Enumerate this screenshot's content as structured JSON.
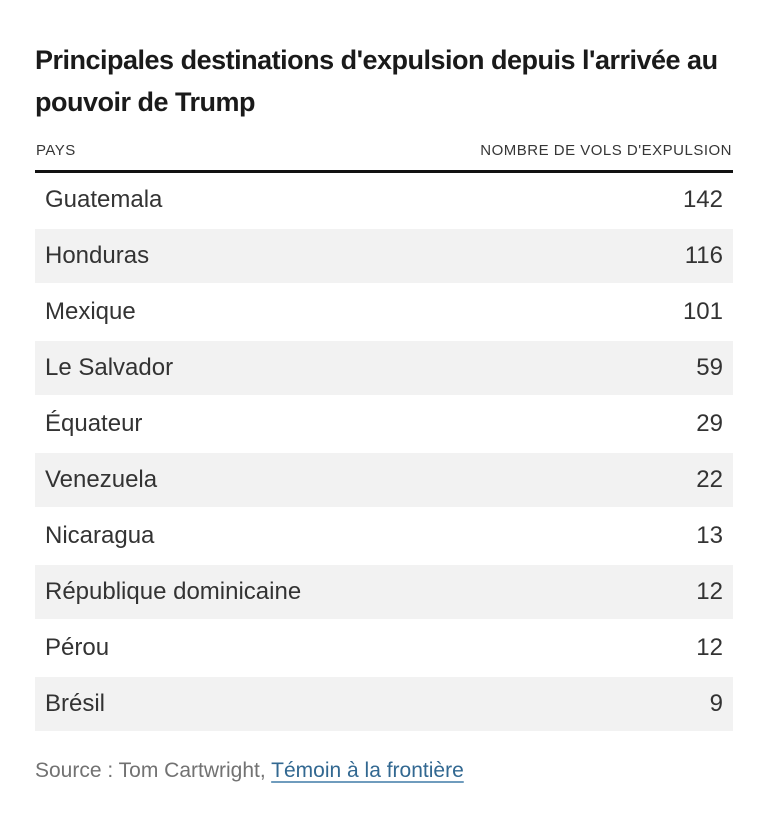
{
  "title": "Principales destinations d'expulsion depuis l'arrivée au pouvoir de Trump",
  "table": {
    "columns": {
      "country": "PAYS",
      "value": "NOMBRE DE VOLS D'EXPULSION"
    },
    "rows": [
      {
        "pays": "Guatemala",
        "vols": "142"
      },
      {
        "pays": "Honduras",
        "vols": "116"
      },
      {
        "pays": "Mexique",
        "vols": "101"
      },
      {
        "pays": "Le Salvador",
        "vols": "59"
      },
      {
        "pays": "Équateur",
        "vols": "29"
      },
      {
        "pays": "Venezuela",
        "vols": "22"
      },
      {
        "pays": "Nicaragua",
        "vols": "13"
      },
      {
        "pays": "République dominicaine",
        "vols": "12"
      },
      {
        "pays": "Pérou",
        "vols": "12"
      },
      {
        "pays": "Brésil",
        "vols": "9"
      }
    ]
  },
  "source": {
    "prefix": "Source : Tom Cartwright, ",
    "link_label": "Témoin à la frontière"
  },
  "colors": {
    "title_text": "#1a1a1a",
    "header_text": "#363636",
    "rule": "#121212",
    "row_text": "#333333",
    "alt_row_background": "#f2f2f2",
    "source_text": "#727272",
    "link": "#326891"
  },
  "chart_data": {
    "type": "table",
    "title": "Principales destinations d'expulsion depuis l'arrivée au pouvoir de Trump",
    "columns": [
      "PAYS",
      "NOMBRE DE VOLS D'EXPULSION"
    ],
    "categories": [
      "Guatemala",
      "Honduras",
      "Mexique",
      "Le Salvador",
      "Équateur",
      "Venezuela",
      "Nicaragua",
      "République dominicaine",
      "Pérou",
      "Brésil"
    ],
    "values": [
      142,
      116,
      101,
      59,
      29,
      22,
      13,
      12,
      12,
      9
    ],
    "source": "Source : Tom Cartwright, Témoin à la frontière"
  }
}
